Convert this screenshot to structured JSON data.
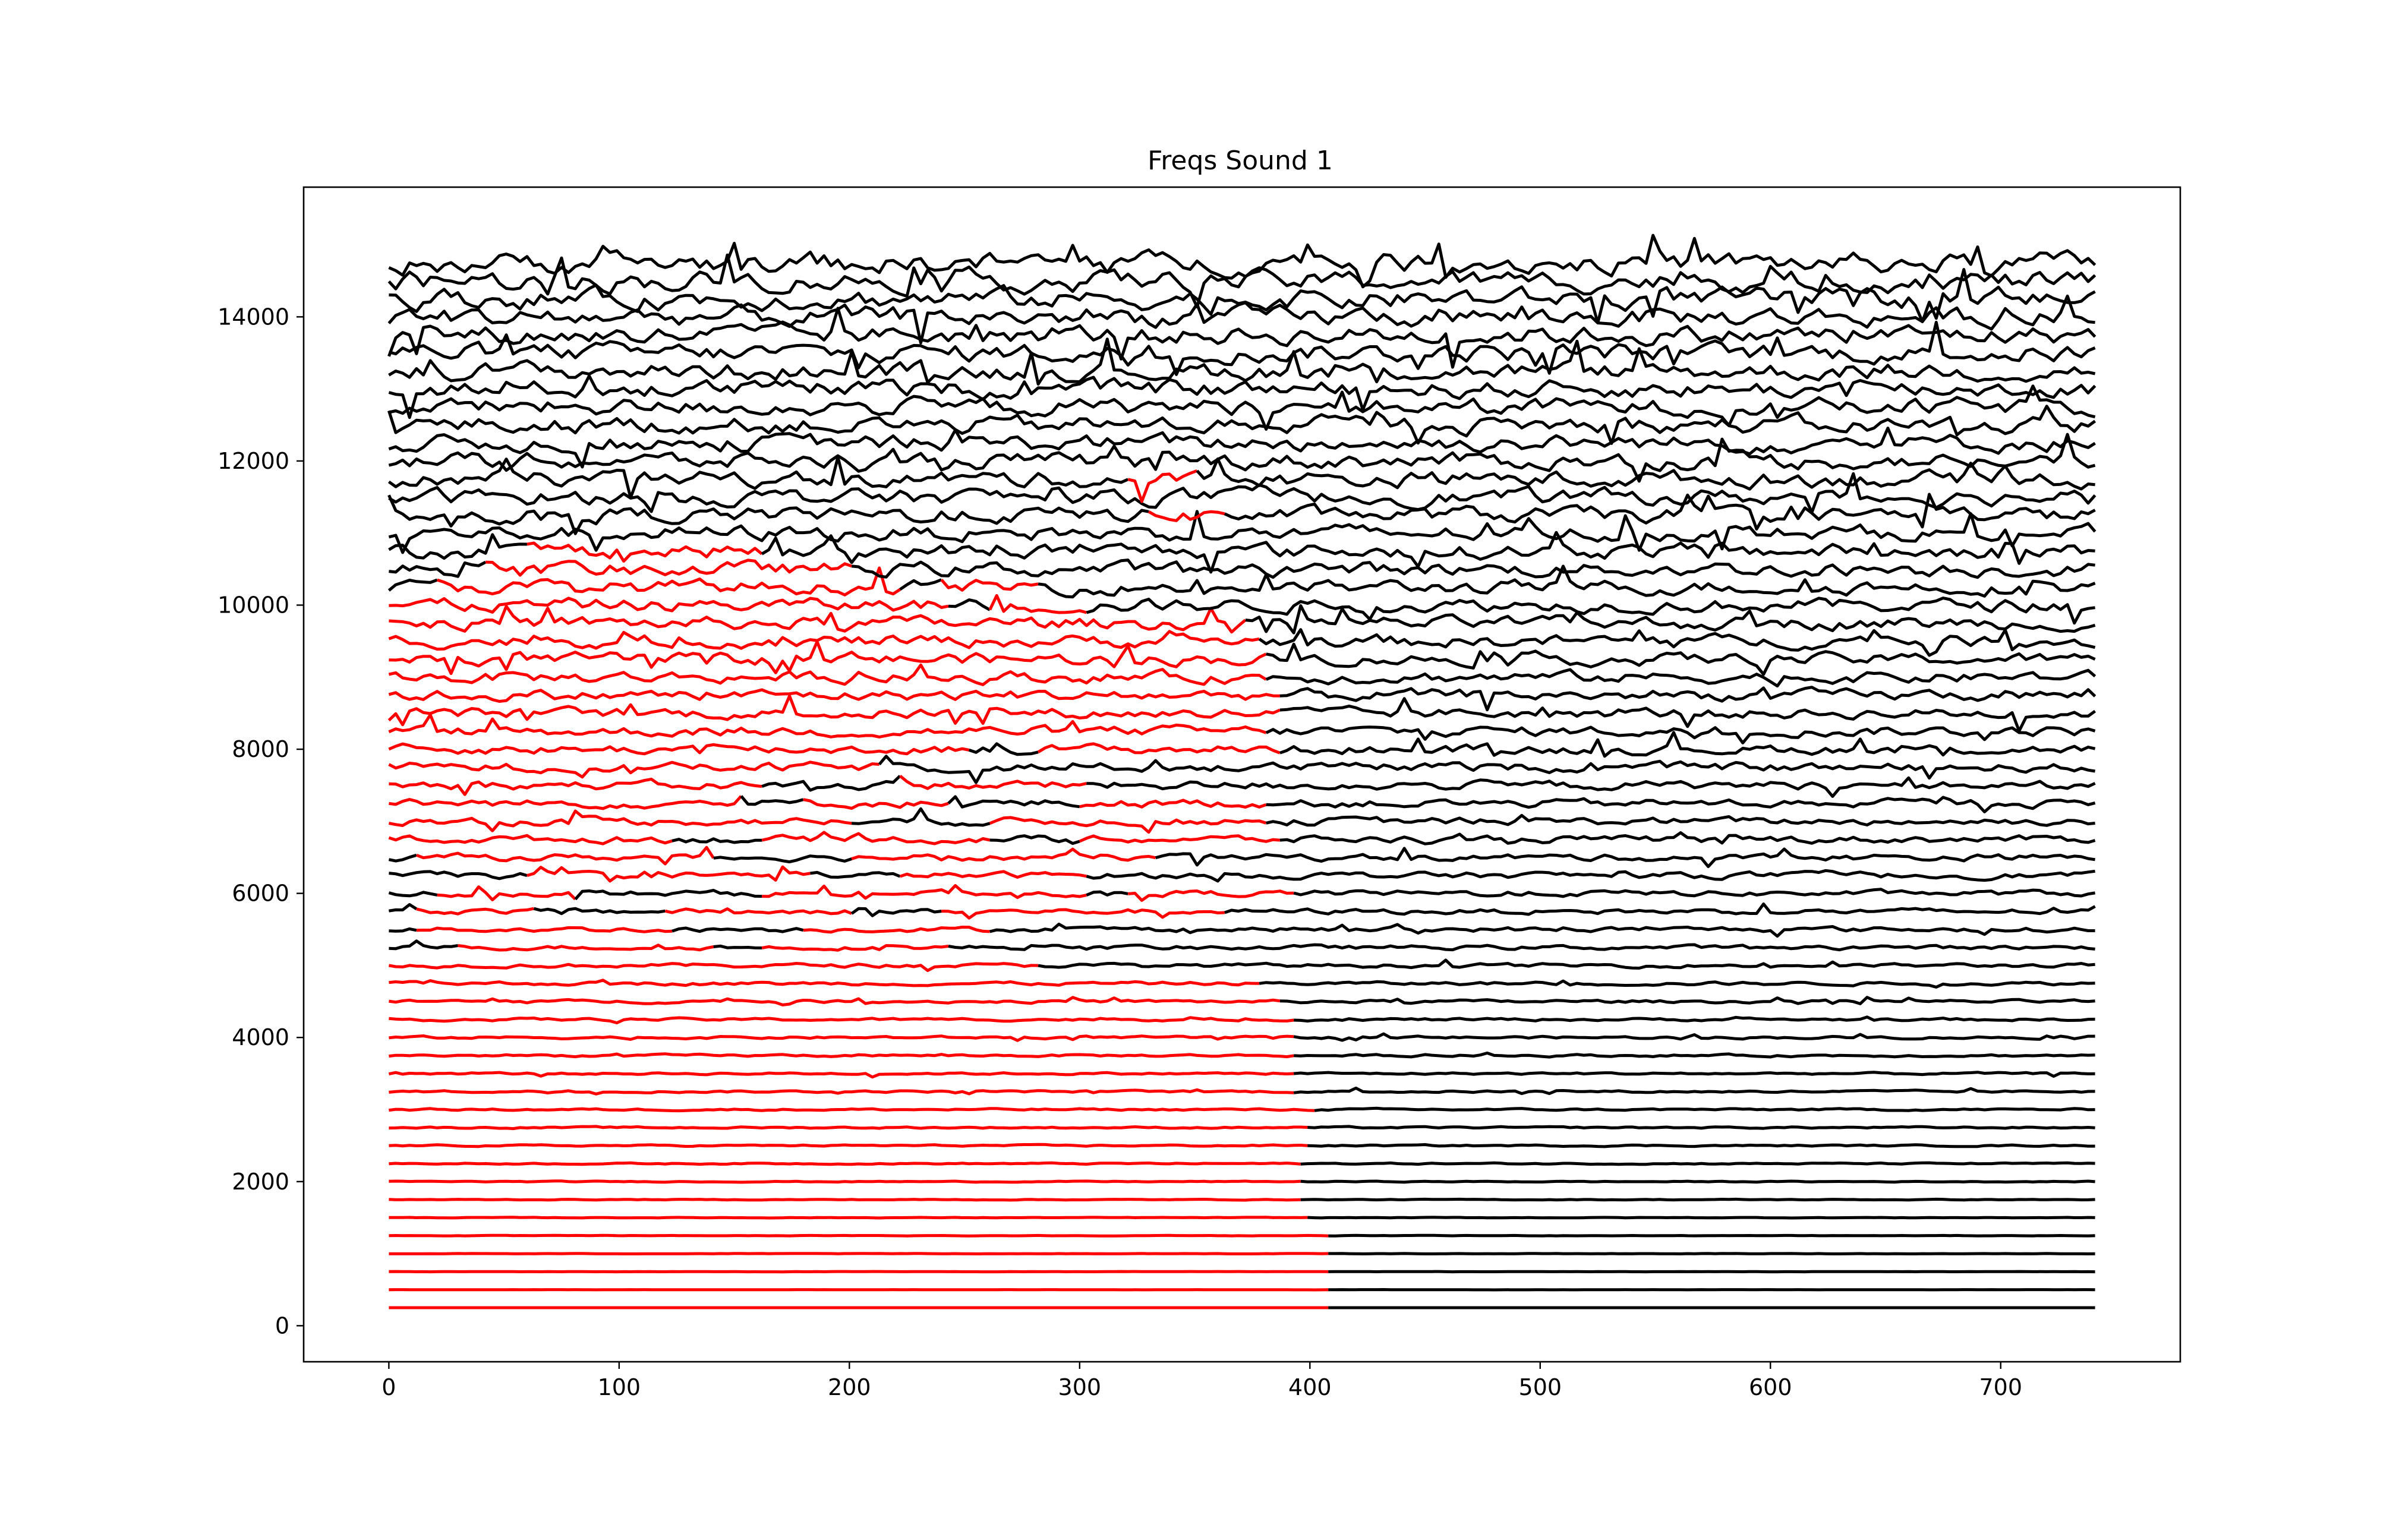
{
  "chart_data": {
    "type": "line",
    "title": "Freqs Sound 1",
    "xlabel": "",
    "ylabel": "",
    "xlim": [
      -37,
      778
    ],
    "ylim": [
      -500,
      15800
    ],
    "x_ticks": [
      0,
      100,
      200,
      300,
      400,
      500,
      600,
      700
    ],
    "x_tick_labels": [
      "0",
      "100",
      "200",
      "300",
      "400",
      "500",
      "600",
      "700"
    ],
    "y_ticks": [
      0,
      2000,
      4000,
      6000,
      8000,
      10000,
      12000,
      14000
    ],
    "y_tick_labels": [
      "0",
      "2000",
      "4000",
      "6000",
      "8000",
      "10000",
      "12000",
      "14000"
    ],
    "grid": false,
    "legend": "none",
    "colors": {
      "highlight": "#ff0000",
      "base": "#000000"
    },
    "x_max": 742,
    "series_description": "Stacked frequency tracks: about 56 horizontal traces, one every ~250 Hz from ~250 to ~14800. Red segments mark highlighted regions; black elsewhere. Lower tracks are smooth, upper tracks increasingly noisy.",
    "tracks": [
      {
        "y": 250,
        "noise": 0,
        "red": [
          [
            0,
            405
          ]
        ]
      },
      {
        "y": 500,
        "noise": 2,
        "red": [
          [
            0,
            405
          ]
        ]
      },
      {
        "y": 750,
        "noise": 3,
        "red": [
          [
            0,
            405
          ]
        ]
      },
      {
        "y": 1000,
        "noise": 4,
        "red": [
          [
            0,
            405
          ]
        ]
      },
      {
        "y": 1250,
        "noise": 5,
        "red": [
          [
            0,
            405
          ]
        ]
      },
      {
        "y": 1500,
        "noise": 6,
        "red": [
          [
            0,
            398
          ]
        ]
      },
      {
        "y": 1750,
        "noise": 8,
        "red": [
          [
            0,
            395
          ]
        ]
      },
      {
        "y": 2000,
        "noise": 10,
        "red": [
          [
            0,
            395
          ]
        ]
      },
      {
        "y": 2250,
        "noise": 14,
        "red": [
          [
            0,
            395
          ]
        ]
      },
      {
        "y": 2500,
        "noise": 16,
        "red": [
          [
            0,
            398
          ]
        ]
      },
      {
        "y": 2750,
        "noise": 18,
        "red": [
          [
            0,
            398
          ]
        ]
      },
      {
        "y": 3000,
        "noise": 20,
        "red": [
          [
            0,
            400
          ]
        ]
      },
      {
        "y": 3250,
        "noise": 22,
        "red": [
          [
            0,
            392
          ]
        ]
      },
      {
        "y": 3500,
        "noise": 22,
        "red": [
          [
            0,
            390
          ]
        ]
      },
      {
        "y": 3750,
        "noise": 24,
        "red": [
          [
            0,
            392
          ]
        ]
      },
      {
        "y": 4000,
        "noise": 26,
        "red": [
          [
            0,
            390
          ]
        ]
      },
      {
        "y": 4250,
        "noise": 28,
        "red": [
          [
            0,
            392
          ]
        ]
      },
      {
        "y": 4500,
        "noise": 32,
        "red": [
          [
            0,
            385
          ]
        ]
      },
      {
        "y": 4750,
        "noise": 36,
        "red": [
          [
            0,
            375
          ]
        ]
      },
      {
        "y": 5000,
        "noise": 40,
        "red": [
          [
            0,
            280
          ]
        ]
      },
      {
        "y": 5250,
        "noise": 45,
        "red": [
          [
            30,
            140
          ],
          [
            160,
            240
          ]
        ]
      },
      {
        "y": 5500,
        "noise": 50,
        "red": [
          [
            10,
            120
          ],
          [
            180,
            260
          ]
        ]
      },
      {
        "y": 5750,
        "noise": 55,
        "red": [
          [
            10,
            60
          ],
          [
            120,
            200
          ],
          [
            240,
            360
          ]
        ]
      },
      {
        "y": 6000,
        "noise": 60,
        "red": [
          [
            20,
            80
          ],
          [
            160,
            300
          ],
          [
            320,
            390
          ]
        ]
      },
      {
        "y": 6250,
        "noise": 65,
        "red": [
          [
            60,
            180
          ],
          [
            220,
            300
          ]
        ]
      },
      {
        "y": 6500,
        "noise": 70,
        "red": [
          [
            10,
            140
          ],
          [
            200,
            330
          ]
        ]
      },
      {
        "y": 6750,
        "noise": 75,
        "red": [
          [
            0,
            120
          ],
          [
            160,
            260
          ],
          [
            300,
            385
          ]
        ]
      },
      {
        "y": 7000,
        "noise": 80,
        "red": [
          [
            0,
            200
          ],
          [
            260,
            380
          ]
        ]
      },
      {
        "y": 7250,
        "noise": 85,
        "red": [
          [
            0,
            150
          ],
          [
            180,
            240
          ],
          [
            300,
            380
          ]
        ]
      },
      {
        "y": 7500,
        "noise": 90,
        "red": [
          [
            0,
            160
          ],
          [
            220,
            300
          ]
        ]
      },
      {
        "y": 7750,
        "noise": 95,
        "red": [
          [
            0,
            210
          ]
        ]
      },
      {
        "y": 8000,
        "noise": 100,
        "red": [
          [
            0,
            250
          ],
          [
            280,
            385
          ]
        ]
      },
      {
        "y": 8250,
        "noise": 105,
        "red": [
          [
            0,
            380
          ]
        ]
      },
      {
        "y": 8500,
        "noise": 110,
        "red": [
          [
            0,
            385
          ]
        ]
      },
      {
        "y": 8750,
        "noise": 115,
        "red": [
          [
            0,
            385
          ]
        ]
      },
      {
        "y": 9000,
        "noise": 120,
        "red": [
          [
            0,
            380
          ]
        ]
      },
      {
        "y": 9250,
        "noise": 125,
        "red": [
          [
            0,
            380
          ]
        ]
      },
      {
        "y": 9500,
        "noise": 130,
        "red": [
          [
            0,
            375
          ]
        ]
      },
      {
        "y": 9750,
        "noise": 135,
        "red": [
          [
            0,
            370
          ]
        ]
      },
      {
        "y": 10000,
        "noise": 140,
        "red": [
          [
            0,
            240
          ],
          [
            260,
            300
          ]
        ]
      },
      {
        "y": 10250,
        "noise": 145,
        "red": [
          [
            20,
            220
          ],
          [
            240,
            280
          ]
        ]
      },
      {
        "y": 10500,
        "noise": 150,
        "red": [
          [
            40,
            200
          ]
        ]
      },
      {
        "y": 10750,
        "noise": 155,
        "red": [
          [
            60,
            160
          ]
        ]
      },
      {
        "y": 11000,
        "noise": 160,
        "red": []
      },
      {
        "y": 11250,
        "noise": 160,
        "red": [
          [
            330,
            360
          ]
        ]
      },
      {
        "y": 11500,
        "noise": 165,
        "red": []
      },
      {
        "y": 11750,
        "noise": 170,
        "red": [
          [
            320,
            350
          ]
        ]
      },
      {
        "y": 12000,
        "noise": 170,
        "red": []
      },
      {
        "y": 12250,
        "noise": 175,
        "red": []
      },
      {
        "y": 12500,
        "noise": 180,
        "red": []
      },
      {
        "y": 12750,
        "noise": 180,
        "red": []
      },
      {
        "y": 13000,
        "noise": 185,
        "red": []
      },
      {
        "y": 13250,
        "noise": 190,
        "red": []
      },
      {
        "y": 13500,
        "noise": 195,
        "red": []
      },
      {
        "y": 13750,
        "noise": 200,
        "red": []
      },
      {
        "y": 14000,
        "noise": 205,
        "red": []
      },
      {
        "y": 14250,
        "noise": 210,
        "red": []
      },
      {
        "y": 14500,
        "noise": 215,
        "red": []
      },
      {
        "y": 14750,
        "noise": 220,
        "red": []
      }
    ]
  }
}
